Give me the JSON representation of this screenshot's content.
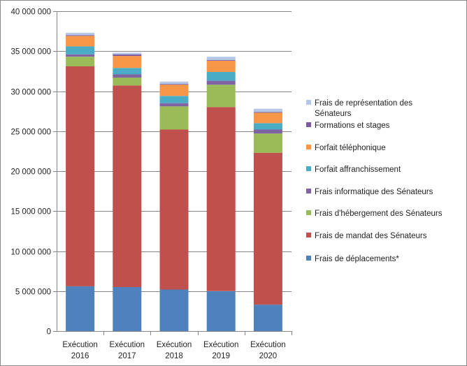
{
  "chart_data": {
    "type": "bar",
    "stacked": true,
    "categories": [
      [
        "Exécution",
        "2016"
      ],
      [
        "Exécution",
        "2017"
      ],
      [
        "Exécution",
        "2018"
      ],
      [
        "Exécution",
        "2019"
      ],
      [
        "Exécution",
        "2020"
      ]
    ],
    "ylim": [
      0,
      40000000
    ],
    "yticks": [
      0,
      5000000,
      10000000,
      15000000,
      20000000,
      25000000,
      30000000,
      35000000,
      40000000
    ],
    "ytick_labels": [
      "0",
      "5 000 000",
      "10 000 000",
      "15 000 000",
      "20 000 000",
      "25 000 000",
      "30 000 000",
      "35 000 000",
      "40 000 000"
    ],
    "grid": true,
    "legend_position": "right",
    "series": [
      {
        "name": "Frais de déplacements*",
        "color": "#4f81bd",
        "values": [
          5600000,
          5500000,
          5200000,
          5000000,
          3300000
        ]
      },
      {
        "name": "Frais de mandat des Sénateurs",
        "color": "#c0504d",
        "values": [
          27500000,
          25200000,
          20000000,
          23000000,
          19000000
        ]
      },
      {
        "name": "Frais d'hébergement des Sénateurs",
        "color": "#9bbb59",
        "values": [
          1200000,
          1000000,
          2900000,
          2800000,
          2400000
        ]
      },
      {
        "name": "Frais informatique des Sénateurs",
        "color": "#8064a2",
        "values": [
          300000,
          400000,
          400000,
          500000,
          500000
        ]
      },
      {
        "name": "Forfait affranchissement",
        "color": "#4bacc6",
        "values": [
          1000000,
          800000,
          900000,
          1100000,
          800000
        ]
      },
      {
        "name": "Forfait téléphonique",
        "color": "#f79646",
        "values": [
          1300000,
          1500000,
          1400000,
          1400000,
          1300000
        ]
      },
      {
        "name": "Formations et stages",
        "color": "#7d5aa0",
        "values": [
          100000,
          200000,
          100000,
          100000,
          100000
        ]
      },
      {
        "name": "Frais de représentation des Sénateurs",
        "color": "#b4c7e7",
        "values": [
          300000,
          200000,
          300000,
          400000,
          400000
        ]
      }
    ],
    "legend_entries": [
      {
        "lines": [
          "Frais de représentation des",
          "Sénateurs"
        ],
        "color": "#b4c7e7"
      },
      {
        "lines": [
          "Formations et stages"
        ],
        "color": "#7d5aa0"
      },
      {
        "lines": [
          "Forfait téléphonique"
        ],
        "color": "#f79646"
      },
      {
        "lines": [
          "Forfait affranchissement"
        ],
        "color": "#4bacc6"
      },
      {
        "lines": [
          "Frais informatique des Sénateurs"
        ],
        "color": "#8064a2"
      },
      {
        "lines": [
          "Frais d'hébergement des Sénateurs"
        ],
        "color": "#9bbb59"
      },
      {
        "lines": [
          "Frais de mandat des Sénateurs"
        ],
        "color": "#c0504d"
      },
      {
        "lines": [
          "Frais de déplacements*"
        ],
        "color": "#4f81bd"
      }
    ]
  }
}
